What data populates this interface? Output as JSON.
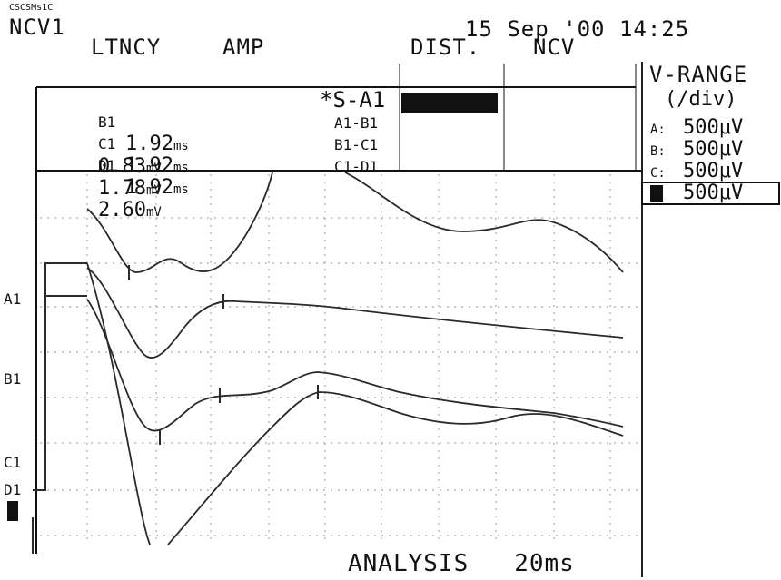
{
  "header": {
    "file_id": "CSCSMs1C",
    "title": "NCV1",
    "date": "15 Sep '00",
    "time": "14:25"
  },
  "table": {
    "col_latency": "LTNCY",
    "col_amp": "AMP",
    "col_dist": "DIST.",
    "col_ncv": "NCV",
    "rows": [
      {
        "label": "B1",
        "latency": "1.92",
        "lat_unit": "ms",
        "amp": "0.83",
        "amp_unit": "mV"
      },
      {
        "label": "C1",
        "latency": "1.92",
        "lat_unit": "ms",
        "amp": "1.78",
        "amp_unit": "mV"
      },
      {
        "label": "D1",
        "latency": "1.92",
        "lat_unit": "ms",
        "amp": "2.60",
        "amp_unit": "mV"
      }
    ],
    "segments": [
      "*S-A1",
      "A1-B1",
      "B1-C1",
      "C1-D1"
    ]
  },
  "vrange": {
    "title": "V-RANGE",
    "subtitle": "(/div)",
    "rows": [
      {
        "label": "A:",
        "value": "500μV"
      },
      {
        "label": "B:",
        "value": "500μV"
      },
      {
        "label": "C:",
        "value": "500μV"
      },
      {
        "label": "D",
        "value": "500μV"
      }
    ]
  },
  "traces": {
    "labels": [
      "A1",
      "B1",
      "C1",
      "D1"
    ]
  },
  "footer": {
    "mode": "ANALYSIS",
    "sweep": "20ms"
  },
  "colors": {
    "trace": "#2a2a2a",
    "grid": "#9a9a9a",
    "background": "#ffffff"
  }
}
